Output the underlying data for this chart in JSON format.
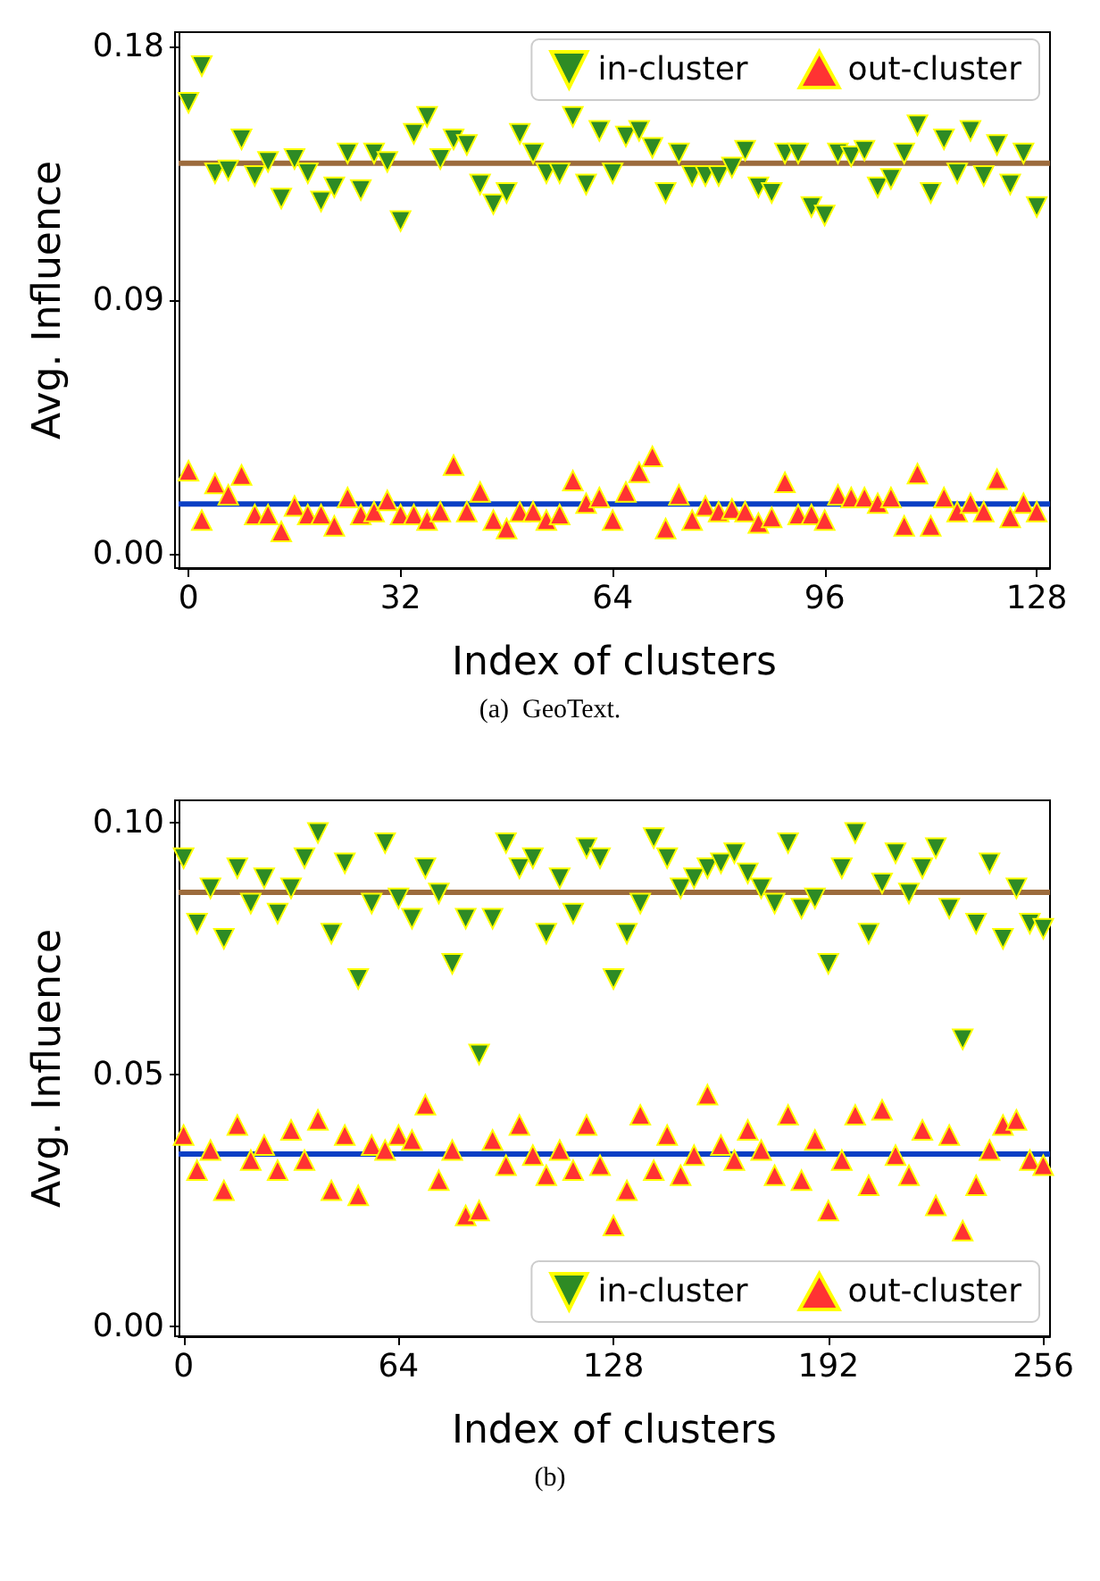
{
  "chart_data": [
    {
      "type": "scatter",
      "xlabel": "Index of clusters",
      "ylabel": "Avg. Influence",
      "annotations": [
        "(a)  GeoText."
      ],
      "xlim": [
        -1.5,
        130
      ],
      "xticks": [
        0,
        32,
        64,
        96,
        128
      ],
      "ylim": [
        -0.005,
        0.185
      ],
      "yticks": [
        {
          "value": 0,
          "label": "0.00"
        },
        {
          "value": 0.09,
          "label": "0.09"
        },
        {
          "value": 0.18,
          "label": "0.18"
        }
      ],
      "grid": false,
      "legend": "top right",
      "x": [
        0,
        2,
        4,
        6,
        8,
        10,
        12,
        14,
        16,
        18,
        20,
        22,
        24,
        26,
        28,
        30,
        32,
        34,
        36,
        38,
        40,
        42,
        44,
        46,
        48,
        50,
        52,
        54,
        56,
        58,
        60,
        62,
        64,
        66,
        68,
        70,
        72,
        74,
        76,
        78,
        80,
        82,
        84,
        86,
        88,
        90,
        92,
        94,
        96,
        98,
        100,
        102,
        104,
        106,
        108,
        110,
        112,
        114,
        116,
        118,
        120,
        122,
        124,
        126,
        128
      ],
      "series": [
        {
          "name": "in-cluster",
          "color": "#2e8b24",
          "marker": "triangle_down",
          "values": [
            0.16,
            0.173,
            0.135,
            0.136,
            0.147,
            0.134,
            0.139,
            0.126,
            0.14,
            0.135,
            0.125,
            0.13,
            0.142,
            0.129,
            0.142,
            0.139,
            0.118,
            0.149,
            0.155,
            0.14,
            0.147,
            0.145,
            0.131,
            0.124,
            0.128,
            0.149,
            0.142,
            0.135,
            0.135,
            0.155,
            0.131,
            0.15,
            0.135,
            0.148,
            0.15,
            0.144,
            0.128,
            0.142,
            0.134,
            0.134,
            0.134,
            0.137,
            0.143,
            0.13,
            0.128,
            0.142,
            0.142,
            0.123,
            0.12,
            0.142,
            0.141,
            0.143,
            0.13,
            0.133,
            0.142,
            0.152,
            0.128,
            0.147,
            0.135,
            0.15,
            0.134,
            0.145,
            0.131,
            0.142,
            0.123
          ]
        },
        {
          "name": "out-cluster",
          "color": "#ff3333",
          "marker": "triangle",
          "values": [
            0.0295,
            0.012,
            0.025,
            0.021,
            0.028,
            0.014,
            0.014,
            0.008,
            0.017,
            0.014,
            0.014,
            0.01,
            0.02,
            0.014,
            0.015,
            0.019,
            0.014,
            0.014,
            0.012,
            0.015,
            0.0315,
            0.015,
            0.022,
            0.012,
            0.009,
            0.015,
            0.015,
            0.012,
            0.014,
            0.026,
            0.018,
            0.02,
            0.012,
            0.022,
            0.029,
            0.0346,
            0.009,
            0.021,
            0.012,
            0.017,
            0.015,
            0.016,
            0.015,
            0.011,
            0.013,
            0.0254,
            0.014,
            0.014,
            0.012,
            0.021,
            0.02,
            0.02,
            0.018,
            0.02,
            0.01,
            0.0285,
            0.01,
            0.02,
            0.015,
            0.018,
            0.015,
            0.0265,
            0.013,
            0.018,
            0.015
          ]
        }
      ],
      "ref_lines": [
        {
          "axis": "y",
          "value": 0.1385,
          "color": "#9c6b3c"
        },
        {
          "axis": "y",
          "value": 0.0177,
          "color": "#0a3fc4"
        }
      ]
    },
    {
      "type": "scatter",
      "xlabel": "Index of clusters",
      "ylabel": "Avg. Influence",
      "annotations": [
        "(b)"
      ],
      "xlim": [
        -1.5,
        258
      ],
      "xticks": [
        0,
        64,
        128,
        192,
        256
      ],
      "ylim": [
        -0.002,
        0.1045
      ],
      "yticks": [
        {
          "value": 0,
          "label": "0.00"
        },
        {
          "value": 0.05,
          "label": "0.05"
        },
        {
          "value": 0.1,
          "label": "0.10"
        }
      ],
      "grid": false,
      "legend": "bottom right",
      "x": [
        0,
        4,
        8,
        12,
        16,
        20,
        24,
        28,
        32,
        36,
        40,
        44,
        48,
        52,
        56,
        60,
        64,
        68,
        72,
        76,
        80,
        84,
        88,
        92,
        96,
        100,
        104,
        108,
        112,
        116,
        120,
        124,
        128,
        132,
        136,
        140,
        144,
        148,
        152,
        156,
        160,
        164,
        168,
        172,
        176,
        180,
        184,
        188,
        192,
        196,
        200,
        204,
        208,
        212,
        216,
        220,
        224,
        228,
        232,
        236,
        240,
        244,
        248,
        252,
        256
      ],
      "series": [
        {
          "name": "in-cluster",
          "color": "#2e8b24",
          "marker": "triangle_down",
          "values": [
            0.093,
            0.08,
            0.087,
            0.077,
            0.091,
            0.084,
            0.089,
            0.082,
            0.087,
            0.093,
            0.098,
            0.078,
            0.092,
            0.069,
            0.084,
            0.096,
            0.085,
            0.081,
            0.091,
            0.086,
            0.072,
            0.081,
            0.054,
            0.081,
            0.096,
            0.091,
            0.093,
            0.078,
            0.089,
            0.082,
            0.095,
            0.093,
            0.069,
            0.078,
            0.084,
            0.097,
            0.093,
            0.087,
            0.089,
            0.091,
            0.092,
            0.094,
            0.09,
            0.087,
            0.084,
            0.096,
            0.083,
            0.085,
            0.072,
            0.091,
            0.098,
            0.078,
            0.088,
            0.094,
            0.086,
            0.091,
            0.095,
            0.083,
            0.057,
            0.08,
            0.092,
            0.077,
            0.087,
            0.08,
            0.079
          ]
        },
        {
          "name": "out-cluster",
          "color": "#ff3333",
          "marker": "triangle",
          "values": [
            0.038,
            0.031,
            0.035,
            0.027,
            0.04,
            0.033,
            0.036,
            0.031,
            0.039,
            0.033,
            0.041,
            0.027,
            0.038,
            0.026,
            0.036,
            0.035,
            0.038,
            0.037,
            0.044,
            0.029,
            0.035,
            0.022,
            0.023,
            0.037,
            0.032,
            0.04,
            0.034,
            0.03,
            0.035,
            0.031,
            0.04,
            0.032,
            0.02,
            0.027,
            0.042,
            0.031,
            0.038,
            0.03,
            0.034,
            0.046,
            0.036,
            0.033,
            0.039,
            0.035,
            0.03,
            0.042,
            0.029,
            0.037,
            0.023,
            0.033,
            0.042,
            0.028,
            0.043,
            0.034,
            0.03,
            0.039,
            0.024,
            0.038,
            0.019,
            0.028,
            0.035,
            0.04,
            0.041,
            0.033,
            0.032
          ]
        }
      ],
      "ref_lines": [
        {
          "axis": "y",
          "value": 0.0862,
          "color": "#9c6b3c"
        },
        {
          "axis": "y",
          "value": 0.0342,
          "color": "#0a3fc4"
        }
      ]
    }
  ]
}
